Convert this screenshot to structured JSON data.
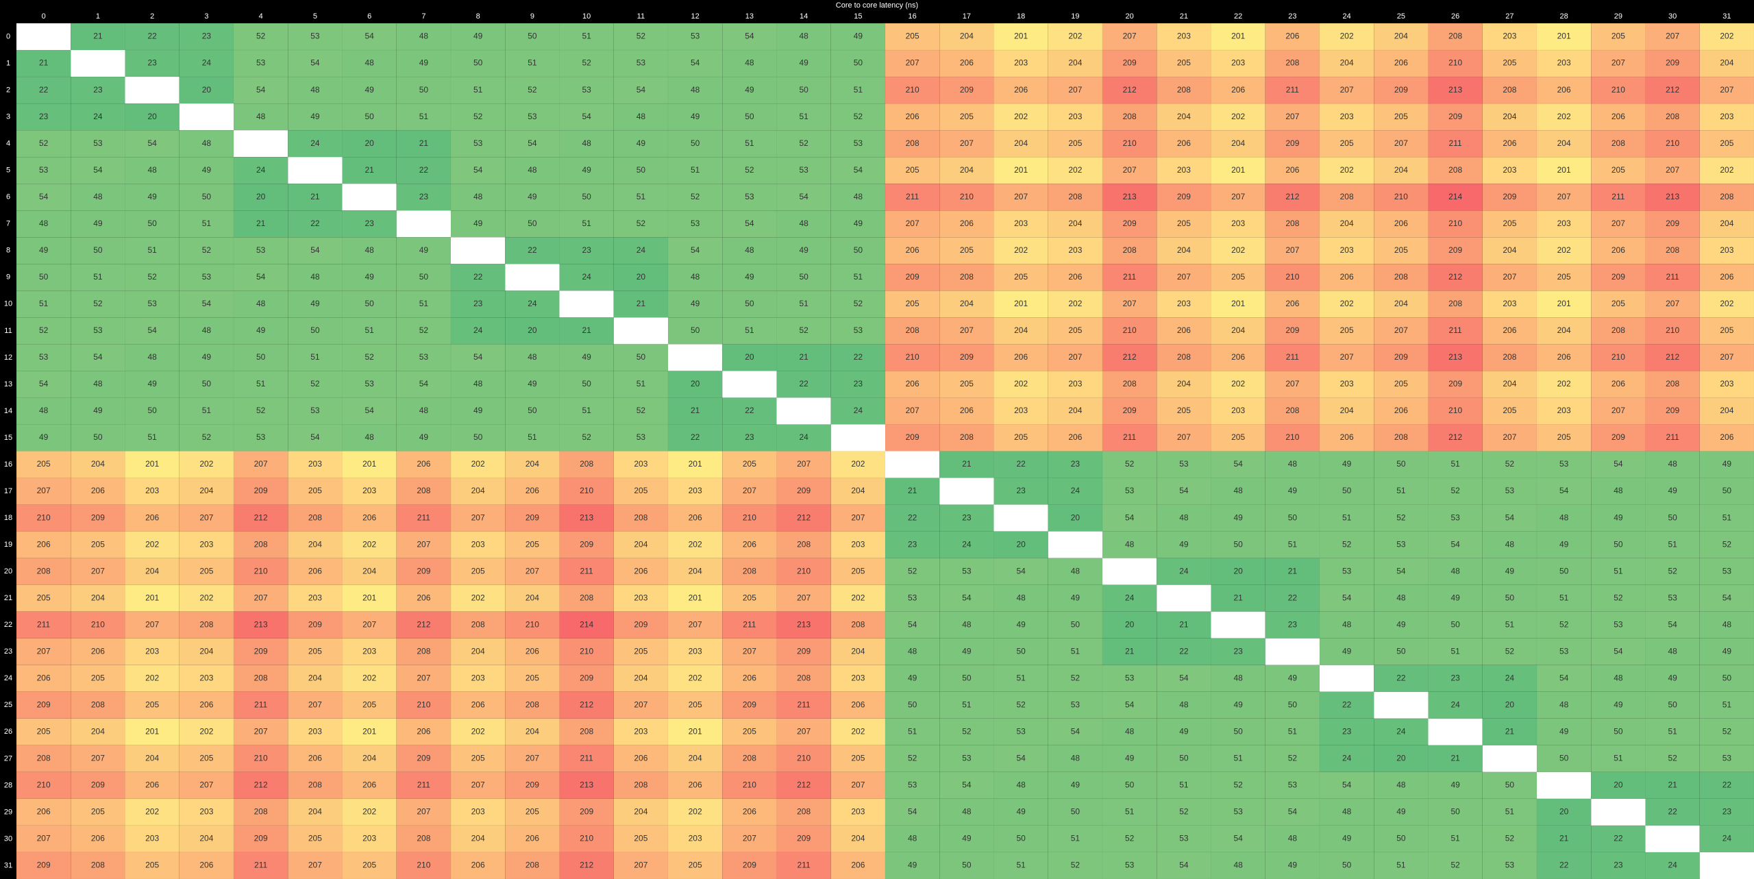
{
  "chart_data": {
    "type": "heatmap",
    "title": "Core to core latency (ns)",
    "cores": [
      0,
      1,
      2,
      3,
      4,
      5,
      6,
      7,
      8,
      9,
      10,
      11,
      12,
      13,
      14,
      15,
      16,
      17,
      18,
      19,
      20,
      21,
      22,
      23,
      24,
      25,
      26,
      27,
      28,
      29,
      30,
      31
    ],
    "colors": {
      "low": "#63be7b",
      "mid": "#ffeb84",
      "high": "#f8696b",
      "diagonal": "#ffffff",
      "header": "#000000",
      "header_text": "#ffffff"
    },
    "values": [
      [
        null,
        21,
        22,
        23,
        52,
        53,
        54,
        48,
        49,
        50,
        51,
        52,
        53,
        54,
        48,
        49,
        205,
        204,
        201,
        202,
        207,
        203,
        201,
        206,
        202,
        204,
        208,
        203,
        201,
        205,
        207,
        202
      ],
      [
        21,
        null,
        23,
        24,
        53,
        54,
        48,
        49,
        50,
        51,
        52,
        53,
        54,
        48,
        49,
        50,
        207,
        206,
        203,
        204,
        209,
        205,
        203,
        208,
        204,
        206,
        210,
        205,
        203,
        207,
        209,
        204
      ],
      [
        22,
        23,
        null,
        20,
        54,
        48,
        49,
        50,
        51,
        52,
        53,
        54,
        48,
        49,
        50,
        51,
        210,
        209,
        206,
        207,
        212,
        208,
        206,
        211,
        207,
        209,
        213,
        208,
        206,
        210,
        212,
        207
      ],
      [
        23,
        24,
        20,
        null,
        48,
        49,
        50,
        51,
        52,
        53,
        54,
        48,
        49,
        50,
        51,
        52,
        206,
        205,
        202,
        203,
        208,
        204,
        202,
        207,
        203,
        205,
        209,
        204,
        202,
        206,
        208,
        203
      ],
      [
        52,
        53,
        54,
        48,
        null,
        24,
        20,
        21,
        53,
        54,
        48,
        49,
        50,
        51,
        52,
        53,
        208,
        207,
        204,
        205,
        210,
        206,
        204,
        209,
        205,
        207,
        211,
        206,
        204,
        208,
        210,
        205
      ],
      [
        53,
        54,
        48,
        49,
        24,
        null,
        21,
        22,
        54,
        48,
        49,
        50,
        51,
        52,
        53,
        54,
        205,
        204,
        201,
        202,
        207,
        203,
        201,
        206,
        202,
        204,
        208,
        203,
        201,
        205,
        207,
        202
      ],
      [
        54,
        48,
        49,
        50,
        20,
        21,
        null,
        23,
        48,
        49,
        50,
        51,
        52,
        53,
        54,
        48,
        211,
        210,
        207,
        208,
        213,
        209,
        207,
        212,
        208,
        210,
        214,
        209,
        207,
        211,
        213,
        208
      ],
      [
        48,
        49,
        50,
        51,
        21,
        22,
        23,
        null,
        49,
        50,
        51,
        52,
        53,
        54,
        48,
        49,
        207,
        206,
        203,
        204,
        209,
        205,
        203,
        208,
        204,
        206,
        210,
        205,
        203,
        207,
        209,
        204
      ],
      [
        49,
        50,
        51,
        52,
        53,
        54,
        48,
        49,
        null,
        22,
        23,
        24,
        54,
        48,
        49,
        50,
        206,
        205,
        202,
        203,
        208,
        204,
        202,
        207,
        203,
        205,
        209,
        204,
        202,
        206,
        208,
        203
      ],
      [
        50,
        51,
        52,
        53,
        54,
        48,
        49,
        50,
        22,
        null,
        24,
        20,
        48,
        49,
        50,
        51,
        209,
        208,
        205,
        206,
        211,
        207,
        205,
        210,
        206,
        208,
        212,
        207,
        205,
        209,
        211,
        206
      ],
      [
        51,
        52,
        53,
        54,
        48,
        49,
        50,
        51,
        23,
        24,
        null,
        21,
        49,
        50,
        51,
        52,
        205,
        204,
        201,
        202,
        207,
        203,
        201,
        206,
        202,
        204,
        208,
        203,
        201,
        205,
        207,
        202
      ],
      [
        52,
        53,
        54,
        48,
        49,
        50,
        51,
        52,
        24,
        20,
        21,
        null,
        50,
        51,
        52,
        53,
        208,
        207,
        204,
        205,
        210,
        206,
        204,
        209,
        205,
        207,
        211,
        206,
        204,
        208,
        210,
        205
      ],
      [
        53,
        54,
        48,
        49,
        50,
        51,
        52,
        53,
        54,
        48,
        49,
        50,
        null,
        20,
        21,
        22,
        210,
        209,
        206,
        207,
        212,
        208,
        206,
        211,
        207,
        209,
        213,
        208,
        206,
        210,
        212,
        207
      ],
      [
        54,
        48,
        49,
        50,
        51,
        52,
        53,
        54,
        48,
        49,
        50,
        51,
        20,
        null,
        22,
        23,
        206,
        205,
        202,
        203,
        208,
        204,
        202,
        207,
        203,
        205,
        209,
        204,
        202,
        206,
        208,
        203
      ],
      [
        48,
        49,
        50,
        51,
        52,
        53,
        54,
        48,
        49,
        50,
        51,
        52,
        21,
        22,
        null,
        24,
        207,
        206,
        203,
        204,
        209,
        205,
        203,
        208,
        204,
        206,
        210,
        205,
        203,
        207,
        209,
        204
      ],
      [
        49,
        50,
        51,
        52,
        53,
        54,
        48,
        49,
        50,
        51,
        52,
        53,
        22,
        23,
        24,
        null,
        209,
        208,
        205,
        206,
        211,
        207,
        205,
        210,
        206,
        208,
        212,
        207,
        205,
        209,
        211,
        206
      ],
      [
        205,
        204,
        201,
        202,
        207,
        203,
        201,
        206,
        202,
        204,
        208,
        203,
        201,
        205,
        207,
        202,
        null,
        21,
        22,
        23,
        52,
        53,
        54,
        48,
        49,
        50,
        51,
        52,
        53,
        54,
        48,
        49
      ],
      [
        207,
        206,
        203,
        204,
        209,
        205,
        203,
        208,
        204,
        206,
        210,
        205,
        203,
        207,
        209,
        204,
        21,
        null,
        23,
        24,
        53,
        54,
        48,
        49,
        50,
        51,
        52,
        53,
        54,
        48,
        49,
        50
      ],
      [
        210,
        209,
        206,
        207,
        212,
        208,
        206,
        211,
        207,
        209,
        213,
        208,
        206,
        210,
        212,
        207,
        22,
        23,
        null,
        20,
        54,
        48,
        49,
        50,
        51,
        52,
        53,
        54,
        48,
        49,
        50,
        51
      ],
      [
        206,
        205,
        202,
        203,
        208,
        204,
        202,
        207,
        203,
        205,
        209,
        204,
        202,
        206,
        208,
        203,
        23,
        24,
        20,
        null,
        48,
        49,
        50,
        51,
        52,
        53,
        54,
        48,
        49,
        50,
        51,
        52
      ],
      [
        208,
        207,
        204,
        205,
        210,
        206,
        204,
        209,
        205,
        207,
        211,
        206,
        204,
        208,
        210,
        205,
        52,
        53,
        54,
        48,
        null,
        24,
        20,
        21,
        53,
        54,
        48,
        49,
        50,
        51,
        52,
        53
      ],
      [
        205,
        204,
        201,
        202,
        207,
        203,
        201,
        206,
        202,
        204,
        208,
        203,
        201,
        205,
        207,
        202,
        53,
        54,
        48,
        49,
        24,
        null,
        21,
        22,
        54,
        48,
        49,
        50,
        51,
        52,
        53,
        54
      ],
      [
        211,
        210,
        207,
        208,
        213,
        209,
        207,
        212,
        208,
        210,
        214,
        209,
        207,
        211,
        213,
        208,
        54,
        48,
        49,
        50,
        20,
        21,
        null,
        23,
        48,
        49,
        50,
        51,
        52,
        53,
        54,
        48
      ],
      [
        207,
        206,
        203,
        204,
        209,
        205,
        203,
        208,
        204,
        206,
        210,
        205,
        203,
        207,
        209,
        204,
        48,
        49,
        50,
        51,
        21,
        22,
        23,
        null,
        49,
        50,
        51,
        52,
        53,
        54,
        48,
        49
      ],
      [
        206,
        205,
        202,
        203,
        208,
        204,
        202,
        207,
        203,
        205,
        209,
        204,
        202,
        206,
        208,
        203,
        49,
        50,
        51,
        52,
        53,
        54,
        48,
        49,
        null,
        22,
        23,
        24,
        54,
        48,
        49,
        50
      ],
      [
        209,
        208,
        205,
        206,
        211,
        207,
        205,
        210,
        206,
        208,
        212,
        207,
        205,
        209,
        211,
        206,
        50,
        51,
        52,
        53,
        54,
        48,
        49,
        50,
        22,
        null,
        24,
        20,
        48,
        49,
        50,
        51
      ],
      [
        205,
        204,
        201,
        202,
        207,
        203,
        201,
        206,
        202,
        204,
        208,
        203,
        201,
        205,
        207,
        202,
        51,
        52,
        53,
        54,
        48,
        49,
        50,
        51,
        23,
        24,
        null,
        21,
        49,
        50,
        51,
        52
      ],
      [
        208,
        207,
        204,
        205,
        210,
        206,
        204,
        209,
        205,
        207,
        211,
        206,
        204,
        208,
        210,
        205,
        52,
        53,
        54,
        48,
        49,
        50,
        51,
        52,
        24,
        20,
        21,
        null,
        50,
        51,
        52,
        53
      ],
      [
        210,
        209,
        206,
        207,
        212,
        208,
        206,
        211,
        207,
        209,
        213,
        208,
        206,
        210,
        212,
        207,
        53,
        54,
        48,
        49,
        50,
        51,
        52,
        53,
        54,
        48,
        49,
        50,
        null,
        20,
        21,
        22
      ],
      [
        206,
        205,
        202,
        203,
        208,
        204,
        202,
        207,
        203,
        205,
        209,
        204,
        202,
        206,
        208,
        203,
        54,
        48,
        49,
        50,
        51,
        52,
        53,
        54,
        48,
        49,
        50,
        51,
        20,
        null,
        22,
        23
      ],
      [
        207,
        206,
        203,
        204,
        209,
        205,
        203,
        208,
        204,
        206,
        210,
        205,
        203,
        207,
        209,
        204,
        48,
        49,
        50,
        51,
        52,
        53,
        54,
        48,
        49,
        50,
        51,
        52,
        21,
        22,
        null,
        24
      ],
      [
        209,
        208,
        205,
        206,
        211,
        207,
        205,
        210,
        206,
        208,
        212,
        207,
        205,
        209,
        211,
        206,
        49,
        50,
        51,
        52,
        53,
        54,
        48,
        49,
        50,
        51,
        52,
        53,
        22,
        23,
        24,
        null
      ]
    ]
  }
}
